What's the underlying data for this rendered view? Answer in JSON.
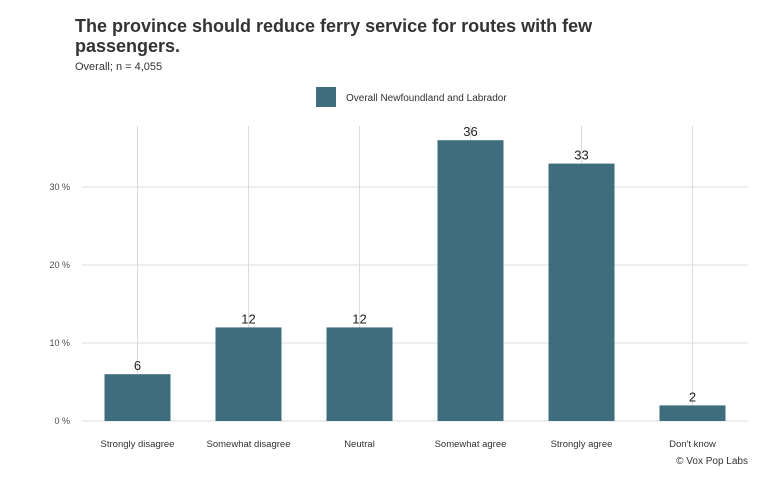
{
  "chart_data": {
    "type": "bar",
    "title": "The province should reduce ferry service for routes with few passengers.",
    "subtitle": "Overall; n = 4,055",
    "categories": [
      "Strongly disagree",
      "Somewhat disagree",
      "Neutral",
      "Somewhat agree",
      "Strongly agree",
      "Don't know"
    ],
    "series": [
      {
        "name": "Overall Newfoundland and Labrador",
        "values": [
          6,
          12,
          12,
          36,
          33,
          2
        ],
        "color": "#3e6e7e"
      }
    ],
    "data_labels": [
      "6",
      "12",
      "12",
      "36",
      "33",
      "2"
    ],
    "yticks": [
      0,
      10,
      20,
      30
    ],
    "ytick_labels": [
      "0 %",
      "10 %",
      "20 %",
      "30 %"
    ],
    "ylim": [
      0,
      38
    ],
    "xlabel": "",
    "ylabel": "",
    "grid": true,
    "legend_position": "top",
    "caption": "© Vox Pop Labs"
  }
}
